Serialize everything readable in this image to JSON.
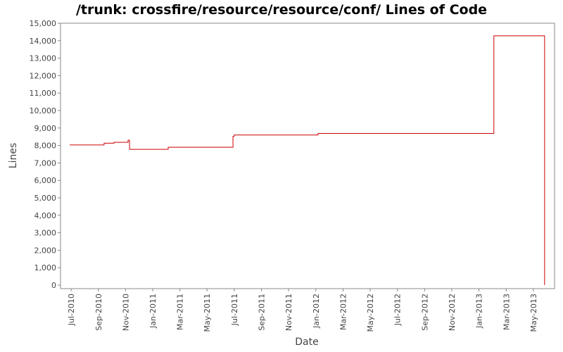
{
  "chart_data": {
    "type": "step",
    "title": "/trunk: crossfire/resource/resource/conf/ Lines of Code",
    "x_label": "Date",
    "y_label": "Lines",
    "x": [
      2010.491,
      2010.702,
      2010.763,
      2010.849,
      2010.858,
      2011.095,
      2011.492,
      2011.5,
      2012.013,
      2013.091,
      2013.402
    ],
    "series": [
      {
        "name": "Lines",
        "color": "#cc0000",
        "values": [
          8030,
          8130,
          8180,
          8300,
          7780,
          7900,
          8530,
          8600,
          8690,
          14280,
          0
        ]
      }
    ],
    "xlim": [
      2010.435,
      2013.463
    ],
    "xticks": [
      {
        "value": 2010.5,
        "label": "Jul-2010"
      },
      {
        "value": 2010.667,
        "label": "Sep-2010"
      },
      {
        "value": 2010.833,
        "label": "Nov-2010"
      },
      {
        "value": 2011.0,
        "label": "Jan-2011"
      },
      {
        "value": 2011.167,
        "label": "Mar-2011"
      },
      {
        "value": 2011.333,
        "label": "May-2011"
      },
      {
        "value": 2011.5,
        "label": "Jul-2011"
      },
      {
        "value": 2011.667,
        "label": "Sep-2011"
      },
      {
        "value": 2011.833,
        "label": "Nov-2011"
      },
      {
        "value": 2012.0,
        "label": "Jan-2012"
      },
      {
        "value": 2012.167,
        "label": "Mar-2012"
      },
      {
        "value": 2012.333,
        "label": "May-2012"
      },
      {
        "value": 2012.5,
        "label": "Jul-2012"
      },
      {
        "value": 2012.667,
        "label": "Sep-2012"
      },
      {
        "value": 2012.833,
        "label": "Nov-2012"
      },
      {
        "value": 2013.0,
        "label": "Jan-2013"
      },
      {
        "value": 2013.167,
        "label": "Mar-2013"
      },
      {
        "value": 2013.333,
        "label": "May-2013"
      }
    ],
    "ylim": [
      -200,
      15000
    ],
    "yticks": [
      0,
      {
        "value": 1000,
        "label": "1,000"
      },
      {
        "value": 2000,
        "label": "2,000"
      },
      {
        "value": 3000,
        "label": "3,000"
      },
      {
        "value": 4000,
        "label": "4,000"
      },
      {
        "value": 5000,
        "label": "5,000"
      },
      {
        "value": 6000,
        "label": "6,000"
      },
      {
        "value": 7000,
        "label": "7,000"
      },
      {
        "value": 8000,
        "label": "8,000"
      },
      {
        "value": 9000,
        "label": "9,000"
      },
      {
        "value": 10000,
        "label": "10,000"
      },
      {
        "value": 11000,
        "label": "11,000"
      },
      {
        "value": 12000,
        "label": "12,000"
      },
      {
        "value": 13000,
        "label": "13,000"
      },
      {
        "value": 14000,
        "label": "14,000"
      },
      {
        "value": 15000,
        "label": "15,000"
      }
    ],
    "grid": false
  }
}
